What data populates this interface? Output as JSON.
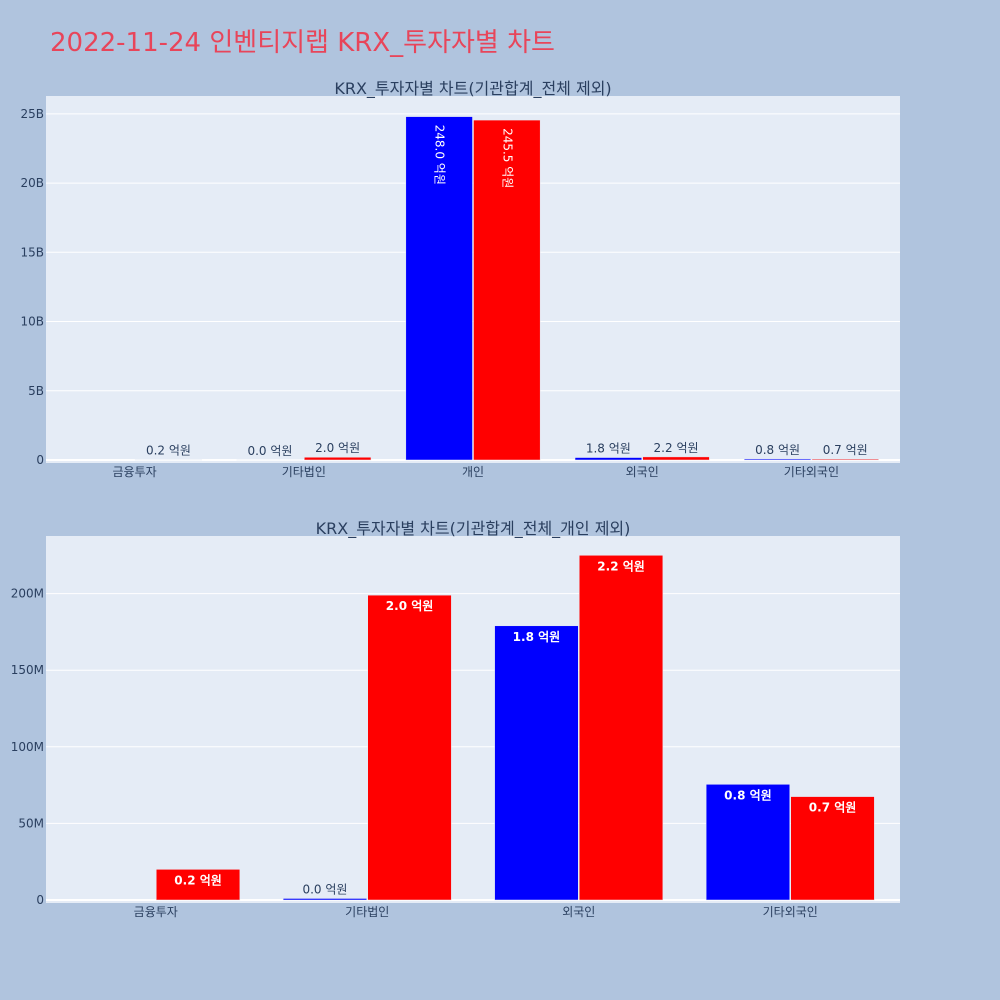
{
  "page": {
    "title": "2022-11-24 인벤티지랩 KRX_투자자별 차트",
    "background": "#b0c4de",
    "title_color": "#e8455a",
    "plot_background": "#e5ecf6"
  },
  "chart_data": [
    {
      "type": "bar",
      "title": "KRX_투자자별 차트(기관합계_전체 제외)",
      "categories": [
        "금융투자",
        "기타법인",
        "개인",
        "외국인",
        "기타외국인"
      ],
      "ylim": [
        0,
        26000000000
      ],
      "yticks": [
        0,
        5000000000,
        10000000000,
        15000000000,
        20000000000,
        25000000000
      ],
      "ytick_labels": [
        "0",
        "5B",
        "10B",
        "15B",
        "20B",
        "25B"
      ],
      "grid": true,
      "label_orientation": "vertical-when-inside",
      "series": [
        {
          "color": "#0000ff",
          "values": [
            0,
            1000000,
            24800000000,
            178000000,
            75000000
          ],
          "labels": [
            "",
            "0.0 억원",
            "248.0 억원",
            "1.8 억원",
            "0.8 억원"
          ]
        },
        {
          "color": "#ff0000",
          "values": [
            20000000,
            199000000,
            24550000000,
            224000000,
            67000000
          ],
          "labels": [
            "0.2 억원",
            "2.0 억원",
            "245.5 억원",
            "2.2 억원",
            "0.7 억원"
          ]
        }
      ]
    },
    {
      "type": "bar",
      "title": "KRX_투자자별 차트(기관합계_전체_개인 제외)",
      "categories": [
        "금융투자",
        "기타법인",
        "외국인",
        "기타외국인"
      ],
      "ylim": [
        0,
        235000000
      ],
      "yticks": [
        0,
        50000000,
        100000000,
        150000000,
        200000000
      ],
      "ytick_labels": [
        "0",
        "50M",
        "100M",
        "150M",
        "200M"
      ],
      "grid": true,
      "label_orientation": "horizontal",
      "series": [
        {
          "color": "#0000ff",
          "values": [
            0,
            1000000,
            179000000,
            75500000
          ],
          "labels": [
            "",
            "0.0 억원",
            "1.8 억원",
            "0.8 억원"
          ]
        },
        {
          "color": "#ff0000",
          "values": [
            20000000,
            199000000,
            225000000,
            67500000
          ],
          "labels": [
            "0.2 억원",
            "2.0 억원",
            "2.2 억원",
            "0.7 억원"
          ]
        }
      ]
    }
  ]
}
